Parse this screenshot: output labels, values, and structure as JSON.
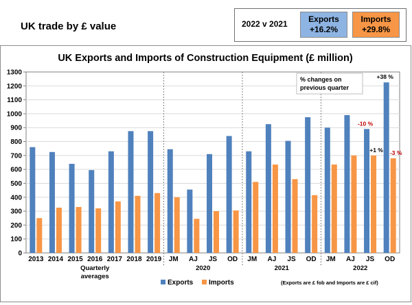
{
  "header": {
    "title": "UK trade by £ value",
    "period_label": "2022 v 2021",
    "exports_label": "Exports",
    "exports_change": "+16.2%",
    "imports_label": "Imports",
    "imports_change": "+29.8%"
  },
  "colors": {
    "exports": "#4f81bd",
    "imports": "#f79646",
    "exports_tile": "#8eb4e3",
    "note_red": "#c00000"
  },
  "chart_data": {
    "type": "bar",
    "title": "UK Exports and Imports of Construction Equipment (£ million)",
    "categories": [
      "2013",
      "2014",
      "2015",
      "2016",
      "2017",
      "2018",
      "2019",
      "JM",
      "AJ",
      "JS",
      "OD",
      "JM",
      "AJ",
      "JS",
      "OD",
      "JM",
      "AJ",
      "JS",
      "OD"
    ],
    "groups": [
      {
        "label": "Quarterly averages",
        "label_lines": [
          "Quarterly",
          "averages"
        ]
      },
      {
        "label": "2020",
        "label_lines": [
          "2020"
        ]
      },
      {
        "label": "2021",
        "label_lines": [
          "2021"
        ]
      },
      {
        "label": "2022",
        "label_lines": [
          "2022"
        ]
      }
    ],
    "series": [
      {
        "name": "Exports",
        "values": [
          760,
          725,
          640,
          595,
          730,
          875,
          875,
          745,
          455,
          710,
          840,
          730,
          925,
          805,
          975,
          900,
          990,
          890,
          1225
        ]
      },
      {
        "name": "Imports",
        "values": [
          250,
          325,
          330,
          320,
          370,
          410,
          430,
          400,
          245,
          300,
          305,
          510,
          635,
          530,
          415,
          635,
          700,
          700,
          680
        ]
      }
    ],
    "ylim": [
      0,
      1300
    ],
    "yticks": [
      0,
      100,
      200,
      300,
      400,
      500,
      600,
      700,
      800,
      900,
      1000,
      1100,
      1200,
      1300
    ],
    "grid": true,
    "legend": "bottom",
    "annotations": [
      {
        "text": "% changes on previous quarter",
        "lines": [
          "% changes on",
          "previous quarter"
        ]
      },
      {
        "text": "-10 %",
        "category_index": 17,
        "series": "Exports",
        "color": "#c00000"
      },
      {
        "text": "+1 %",
        "category_index": 17,
        "series": "Imports",
        "color": "#000000"
      },
      {
        "text": "+38 %",
        "category_index": 18,
        "series": "Exports",
        "color": "#000000"
      },
      {
        "text": "-3 %",
        "category_index": 18,
        "series": "Imports",
        "color": "#c00000"
      }
    ],
    "footnote": "(Exports are £ fob and Imports are £ cif)"
  }
}
